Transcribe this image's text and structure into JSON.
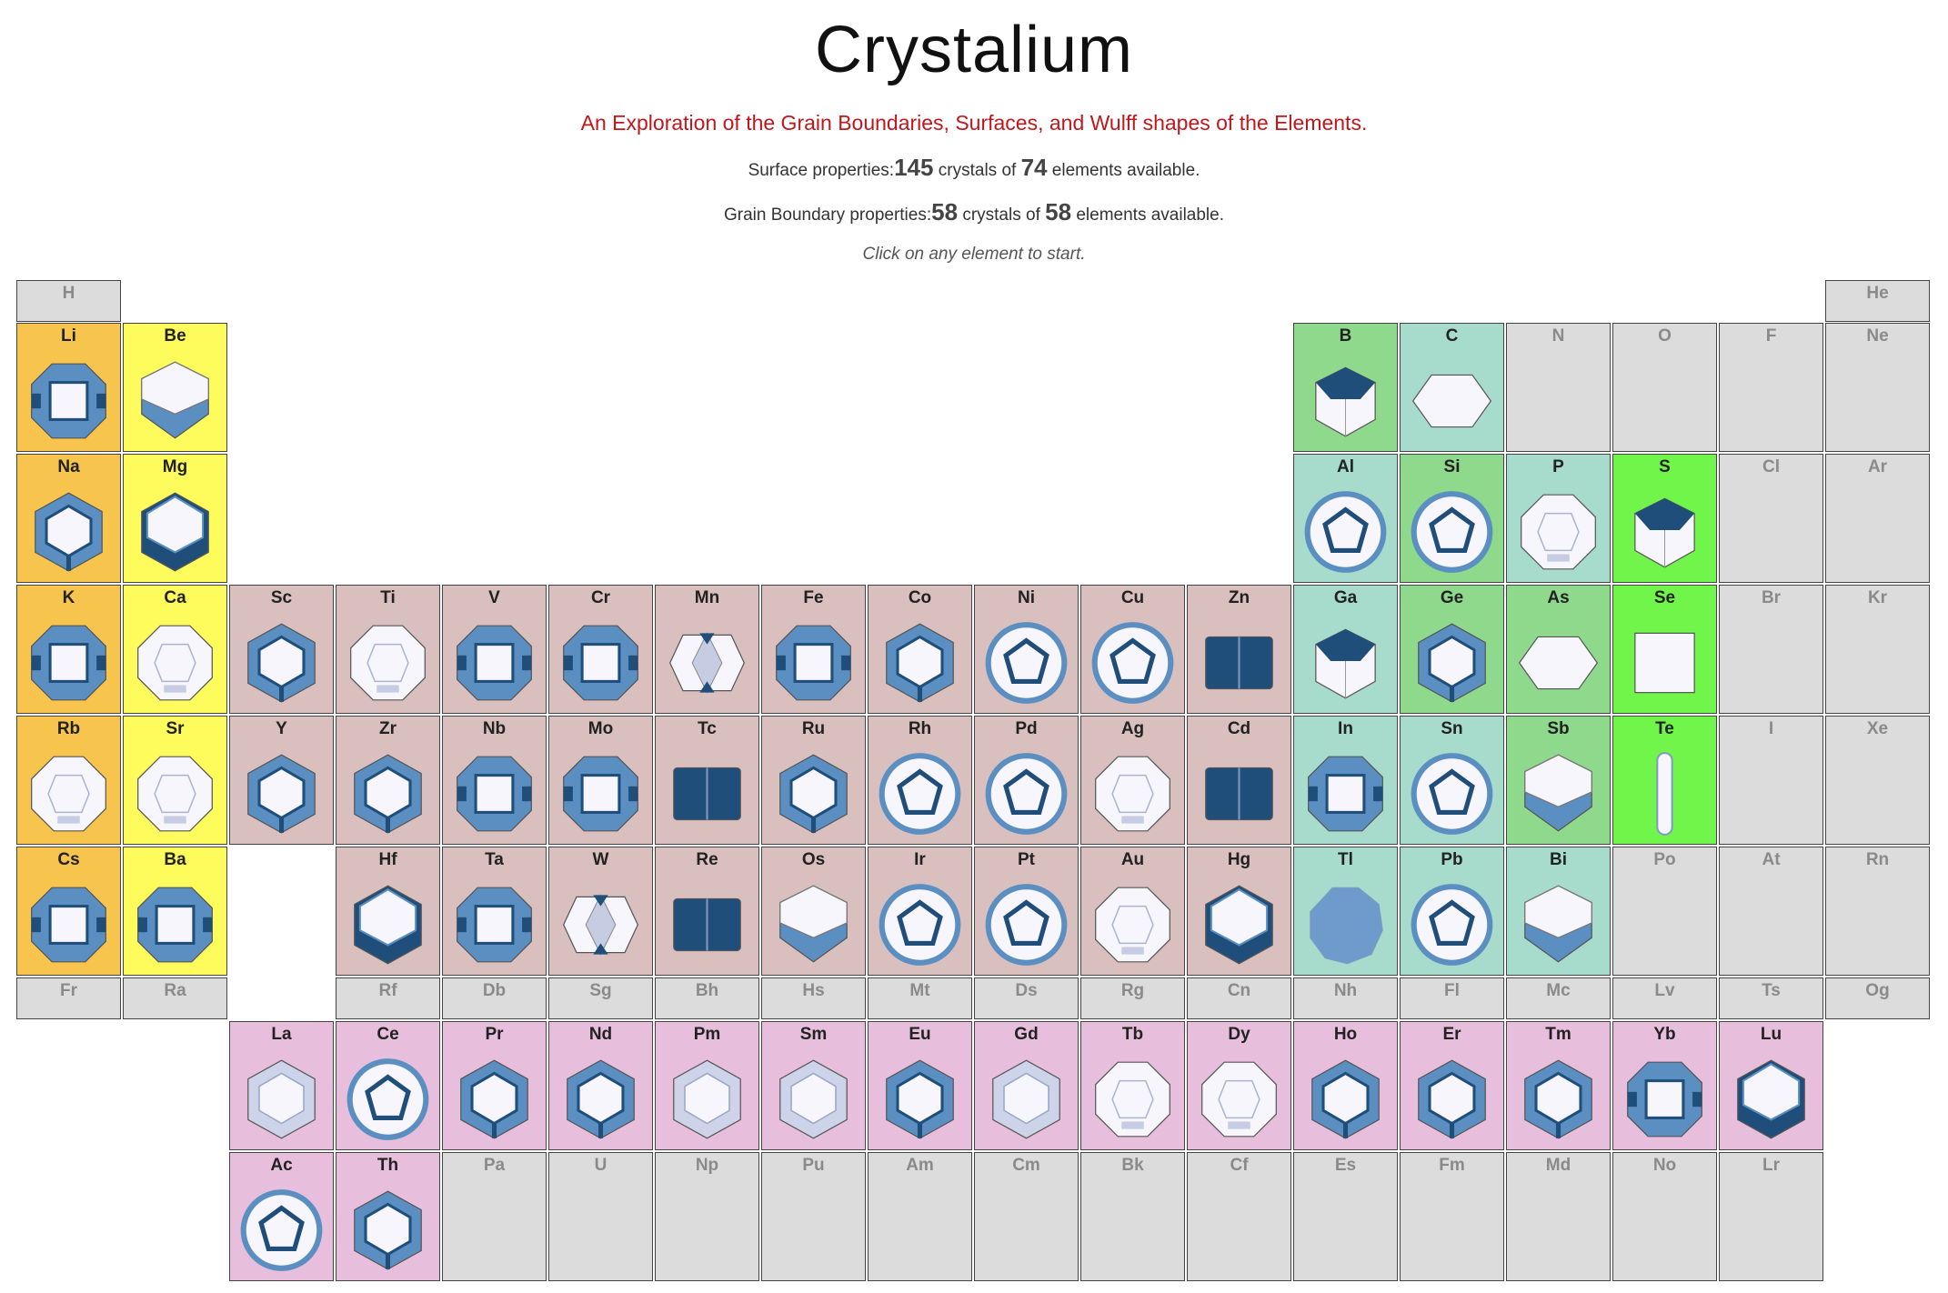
{
  "header": {
    "title": "Crystalium",
    "subtitle": "An Exploration of the Grain Boundaries, Surfaces, and Wulff shapes of the Elements.",
    "surface_label": "Surface properties:",
    "surface_crystals": "145",
    "surface_mid": "crystals of",
    "surface_elements": "74",
    "surface_tail": "elements available.",
    "gb_label": "Grain Boundary properties:",
    "gb_crystals": "58",
    "gb_mid": "crystals of",
    "gb_elements": "58",
    "gb_tail": "elements available.",
    "hint": "Click on any element to start."
  },
  "colors": {
    "alkali": "#f7c54e",
    "alkaline": "#fefb5c",
    "transition": "#d9c0bf",
    "post": "#a7dccd",
    "metalloid": "#8fd98c",
    "nonmetal": "#72f54a",
    "lanthanide": "#e7bfdc",
    "nodata": "#dcdcdc",
    "shape_dark": "#1f4e7a",
    "shape_mid": "#5b8fc2",
    "shape_light": "#f7f6fc"
  },
  "elements": [
    {
      "symbol": "H",
      "row": 0,
      "col": 0,
      "type": "nodata"
    },
    {
      "symbol": "He",
      "row": 0,
      "col": 17,
      "type": "nodata"
    },
    {
      "symbol": "Li",
      "row": 1,
      "col": 0,
      "type": "alkali",
      "shape": "oct"
    },
    {
      "symbol": "Be",
      "row": 1,
      "col": 1,
      "type": "alkaline",
      "shape": "hexprism"
    },
    {
      "symbol": "B",
      "row": 1,
      "col": 12,
      "type": "metalloid",
      "shape": "cube"
    },
    {
      "symbol": "C",
      "row": 1,
      "col": 13,
      "type": "post",
      "shape": "flat"
    },
    {
      "symbol": "N",
      "row": 1,
      "col": 14,
      "type": "nodata"
    },
    {
      "symbol": "O",
      "row": 1,
      "col": 15,
      "type": "nodata"
    },
    {
      "symbol": "F",
      "row": 1,
      "col": 16,
      "type": "nodata"
    },
    {
      "symbol": "Ne",
      "row": 1,
      "col": 17,
      "type": "nodata"
    },
    {
      "symbol": "Na",
      "row": 2,
      "col": 0,
      "type": "alkali",
      "shape": "hex"
    },
    {
      "symbol": "Mg",
      "row": 2,
      "col": 1,
      "type": "alkaline",
      "shape": "hexdark"
    },
    {
      "symbol": "Al",
      "row": 2,
      "col": 12,
      "type": "post",
      "shape": "poly"
    },
    {
      "symbol": "Si",
      "row": 2,
      "col": 13,
      "type": "metalloid",
      "shape": "poly"
    },
    {
      "symbol": "P",
      "row": 2,
      "col": 14,
      "type": "post",
      "shape": "round"
    },
    {
      "symbol": "S",
      "row": 2,
      "col": 15,
      "type": "nonmetal",
      "shape": "cube"
    },
    {
      "symbol": "Cl",
      "row": 2,
      "col": 16,
      "type": "nodata"
    },
    {
      "symbol": "Ar",
      "row": 2,
      "col": 17,
      "type": "nodata"
    },
    {
      "symbol": "K",
      "row": 3,
      "col": 0,
      "type": "alkali",
      "shape": "oct"
    },
    {
      "symbol": "Ca",
      "row": 3,
      "col": 1,
      "type": "alkaline",
      "shape": "round"
    },
    {
      "symbol": "Sc",
      "row": 3,
      "col": 2,
      "type": "transition",
      "shape": "hex"
    },
    {
      "symbol": "Ti",
      "row": 3,
      "col": 3,
      "type": "transition",
      "shape": "round"
    },
    {
      "symbol": "V",
      "row": 3,
      "col": 4,
      "type": "transition",
      "shape": "oct"
    },
    {
      "symbol": "Cr",
      "row": 3,
      "col": 5,
      "type": "transition",
      "shape": "oct"
    },
    {
      "symbol": "Mn",
      "row": 3,
      "col": 6,
      "type": "transition",
      "shape": "diamond"
    },
    {
      "symbol": "Fe",
      "row": 3,
      "col": 7,
      "type": "transition",
      "shape": "oct"
    },
    {
      "symbol": "Co",
      "row": 3,
      "col": 8,
      "type": "transition",
      "shape": "hex"
    },
    {
      "symbol": "Ni",
      "row": 3,
      "col": 9,
      "type": "transition",
      "shape": "poly"
    },
    {
      "symbol": "Cu",
      "row": 3,
      "col": 10,
      "type": "transition",
      "shape": "poly"
    },
    {
      "symbol": "Zn",
      "row": 3,
      "col": 11,
      "type": "transition",
      "shape": "rect"
    },
    {
      "symbol": "Ga",
      "row": 3,
      "col": 12,
      "type": "post",
      "shape": "cube"
    },
    {
      "symbol": "Ge",
      "row": 3,
      "col": 13,
      "type": "metalloid",
      "shape": "hex"
    },
    {
      "symbol": "As",
      "row": 3,
      "col": 14,
      "type": "metalloid",
      "shape": "flat"
    },
    {
      "symbol": "Se",
      "row": 3,
      "col": 15,
      "type": "nonmetal",
      "shape": "square"
    },
    {
      "symbol": "Br",
      "row": 3,
      "col": 16,
      "type": "nodata"
    },
    {
      "symbol": "Kr",
      "row": 3,
      "col": 17,
      "type": "nodata"
    },
    {
      "symbol": "Rb",
      "row": 4,
      "col": 0,
      "type": "alkali",
      "shape": "round"
    },
    {
      "symbol": "Sr",
      "row": 4,
      "col": 1,
      "type": "alkaline",
      "shape": "round"
    },
    {
      "symbol": "Y",
      "row": 4,
      "col": 2,
      "type": "transition",
      "shape": "hex"
    },
    {
      "symbol": "Zr",
      "row": 4,
      "col": 3,
      "type": "transition",
      "shape": "hex"
    },
    {
      "symbol": "Nb",
      "row": 4,
      "col": 4,
      "type": "transition",
      "shape": "oct"
    },
    {
      "symbol": "Mo",
      "row": 4,
      "col": 5,
      "type": "transition",
      "shape": "oct"
    },
    {
      "symbol": "Tc",
      "row": 4,
      "col": 6,
      "type": "transition",
      "shape": "rect"
    },
    {
      "symbol": "Ru",
      "row": 4,
      "col": 7,
      "type": "transition",
      "shape": "hex"
    },
    {
      "symbol": "Rh",
      "row": 4,
      "col": 8,
      "type": "transition",
      "shape": "poly"
    },
    {
      "symbol": "Pd",
      "row": 4,
      "col": 9,
      "type": "transition",
      "shape": "poly"
    },
    {
      "symbol": "Ag",
      "row": 4,
      "col": 10,
      "type": "transition",
      "shape": "round"
    },
    {
      "symbol": "Cd",
      "row": 4,
      "col": 11,
      "type": "transition",
      "shape": "rect"
    },
    {
      "symbol": "In",
      "row": 4,
      "col": 12,
      "type": "post",
      "shape": "oct"
    },
    {
      "symbol": "Sn",
      "row": 4,
      "col": 13,
      "type": "post",
      "shape": "poly"
    },
    {
      "symbol": "Sb",
      "row": 4,
      "col": 14,
      "type": "metalloid",
      "shape": "hexprism"
    },
    {
      "symbol": "Te",
      "row": 4,
      "col": 15,
      "type": "nonmetal",
      "shape": "needle"
    },
    {
      "symbol": "I",
      "row": 4,
      "col": 16,
      "type": "nodata"
    },
    {
      "symbol": "Xe",
      "row": 4,
      "col": 17,
      "type": "nodata"
    },
    {
      "symbol": "Cs",
      "row": 5,
      "col": 0,
      "type": "alkali",
      "shape": "oct"
    },
    {
      "symbol": "Ba",
      "row": 5,
      "col": 1,
      "type": "alkaline",
      "shape": "oct"
    },
    {
      "symbol": "Hf",
      "row": 5,
      "col": 3,
      "type": "transition",
      "shape": "hexdark"
    },
    {
      "symbol": "Ta",
      "row": 5,
      "col": 4,
      "type": "transition",
      "shape": "oct"
    },
    {
      "symbol": "W",
      "row": 5,
      "col": 5,
      "type": "transition",
      "shape": "diamond"
    },
    {
      "symbol": "Re",
      "row": 5,
      "col": 6,
      "type": "transition",
      "shape": "rect"
    },
    {
      "symbol": "Os",
      "row": 5,
      "col": 7,
      "type": "transition",
      "shape": "hexprism"
    },
    {
      "symbol": "Ir",
      "row": 5,
      "col": 8,
      "type": "transition",
      "shape": "poly"
    },
    {
      "symbol": "Pt",
      "row": 5,
      "col": 9,
      "type": "transition",
      "shape": "poly"
    },
    {
      "symbol": "Au",
      "row": 5,
      "col": 10,
      "type": "transition",
      "shape": "round"
    },
    {
      "symbol": "Hg",
      "row": 5,
      "col": 11,
      "type": "transition",
      "shape": "hexdark"
    },
    {
      "symbol": "Tl",
      "row": 5,
      "col": 12,
      "type": "post",
      "shape": "blob"
    },
    {
      "symbol": "Pb",
      "row": 5,
      "col": 13,
      "type": "post",
      "shape": "poly"
    },
    {
      "symbol": "Bi",
      "row": 5,
      "col": 14,
      "type": "post",
      "shape": "hexprism"
    },
    {
      "symbol": "Po",
      "row": 5,
      "col": 15,
      "type": "nodata"
    },
    {
      "symbol": "At",
      "row": 5,
      "col": 16,
      "type": "nodata"
    },
    {
      "symbol": "Rn",
      "row": 5,
      "col": 17,
      "type": "nodata"
    },
    {
      "symbol": "Fr",
      "row": 6,
      "col": 0,
      "type": "nodata"
    },
    {
      "symbol": "Ra",
      "row": 6,
      "col": 1,
      "type": "nodata"
    },
    {
      "symbol": "Rf",
      "row": 6,
      "col": 3,
      "type": "nodata"
    },
    {
      "symbol": "Db",
      "row": 6,
      "col": 4,
      "type": "nodata"
    },
    {
      "symbol": "Sg",
      "row": 6,
      "col": 5,
      "type": "nodata"
    },
    {
      "symbol": "Bh",
      "row": 6,
      "col": 6,
      "type": "nodata"
    },
    {
      "symbol": "Hs",
      "row": 6,
      "col": 7,
      "type": "nodata"
    },
    {
      "symbol": "Mt",
      "row": 6,
      "col": 8,
      "type": "nodata"
    },
    {
      "symbol": "Ds",
      "row": 6,
      "col": 9,
      "type": "nodata"
    },
    {
      "symbol": "Rg",
      "row": 6,
      "col": 10,
      "type": "nodata"
    },
    {
      "symbol": "Cn",
      "row": 6,
      "col": 11,
      "type": "nodata"
    },
    {
      "symbol": "Nh",
      "row": 6,
      "col": 12,
      "type": "nodata"
    },
    {
      "symbol": "Fl",
      "row": 6,
      "col": 13,
      "type": "nodata"
    },
    {
      "symbol": "Mc",
      "row": 6,
      "col": 14,
      "type": "nodata"
    },
    {
      "symbol": "Lv",
      "row": 6,
      "col": 15,
      "type": "nodata"
    },
    {
      "symbol": "Ts",
      "row": 6,
      "col": 16,
      "type": "nodata"
    },
    {
      "symbol": "Og",
      "row": 6,
      "col": 17,
      "type": "nodata"
    },
    {
      "symbol": "La",
      "row": 7,
      "col": 2,
      "type": "lanthanide",
      "shape": "hexlight"
    },
    {
      "symbol": "Ce",
      "row": 7,
      "col": 3,
      "type": "lanthanide",
      "shape": "poly"
    },
    {
      "symbol": "Pr",
      "row": 7,
      "col": 4,
      "type": "lanthanide",
      "shape": "hex"
    },
    {
      "symbol": "Nd",
      "row": 7,
      "col": 5,
      "type": "lanthanide",
      "shape": "hex"
    },
    {
      "symbol": "Pm",
      "row": 7,
      "col": 6,
      "type": "lanthanide",
      "shape": "hexlight"
    },
    {
      "symbol": "Sm",
      "row": 7,
      "col": 7,
      "type": "lanthanide",
      "shape": "hexlight"
    },
    {
      "symbol": "Eu",
      "row": 7,
      "col": 8,
      "type": "lanthanide",
      "shape": "hex"
    },
    {
      "symbol": "Gd",
      "row": 7,
      "col": 9,
      "type": "lanthanide",
      "shape": "hexlight"
    },
    {
      "symbol": "Tb",
      "row": 7,
      "col": 10,
      "type": "lanthanide",
      "shape": "round"
    },
    {
      "symbol": "Dy",
      "row": 7,
      "col": 11,
      "type": "lanthanide",
      "shape": "round"
    },
    {
      "symbol": "Ho",
      "row": 7,
      "col": 12,
      "type": "lanthanide",
      "shape": "hex"
    },
    {
      "symbol": "Er",
      "row": 7,
      "col": 13,
      "type": "lanthanide",
      "shape": "hex"
    },
    {
      "symbol": "Tm",
      "row": 7,
      "col": 14,
      "type": "lanthanide",
      "shape": "hex"
    },
    {
      "symbol": "Yb",
      "row": 7,
      "col": 15,
      "type": "lanthanide",
      "shape": "oct"
    },
    {
      "symbol": "Lu",
      "row": 7,
      "col": 16,
      "type": "lanthanide",
      "shape": "hexdark"
    },
    {
      "symbol": "Ac",
      "row": 8,
      "col": 2,
      "type": "lanthanide",
      "shape": "poly"
    },
    {
      "symbol": "Th",
      "row": 8,
      "col": 3,
      "type": "lanthanide",
      "shape": "hex"
    },
    {
      "symbol": "Pa",
      "row": 8,
      "col": 4,
      "type": "nodata"
    },
    {
      "symbol": "U",
      "row": 8,
      "col": 5,
      "type": "nodata"
    },
    {
      "symbol": "Np",
      "row": 8,
      "col": 6,
      "type": "nodata"
    },
    {
      "symbol": "Pu",
      "row": 8,
      "col": 7,
      "type": "nodata"
    },
    {
      "symbol": "Am",
      "row": 8,
      "col": 8,
      "type": "nodata"
    },
    {
      "symbol": "Cm",
      "row": 8,
      "col": 9,
      "type": "nodata"
    },
    {
      "symbol": "Bk",
      "row": 8,
      "col": 10,
      "type": "nodata"
    },
    {
      "symbol": "Cf",
      "row": 8,
      "col": 11,
      "type": "nodata"
    },
    {
      "symbol": "Es",
      "row": 8,
      "col": 12,
      "type": "nodata"
    },
    {
      "symbol": "Fm",
      "row": 8,
      "col": 13,
      "type": "nodata"
    },
    {
      "symbol": "Md",
      "row": 8,
      "col": 14,
      "type": "nodata"
    },
    {
      "symbol": "No",
      "row": 8,
      "col": 15,
      "type": "nodata"
    },
    {
      "symbol": "Lr",
      "row": 8,
      "col": 16,
      "type": "nodata"
    }
  ]
}
